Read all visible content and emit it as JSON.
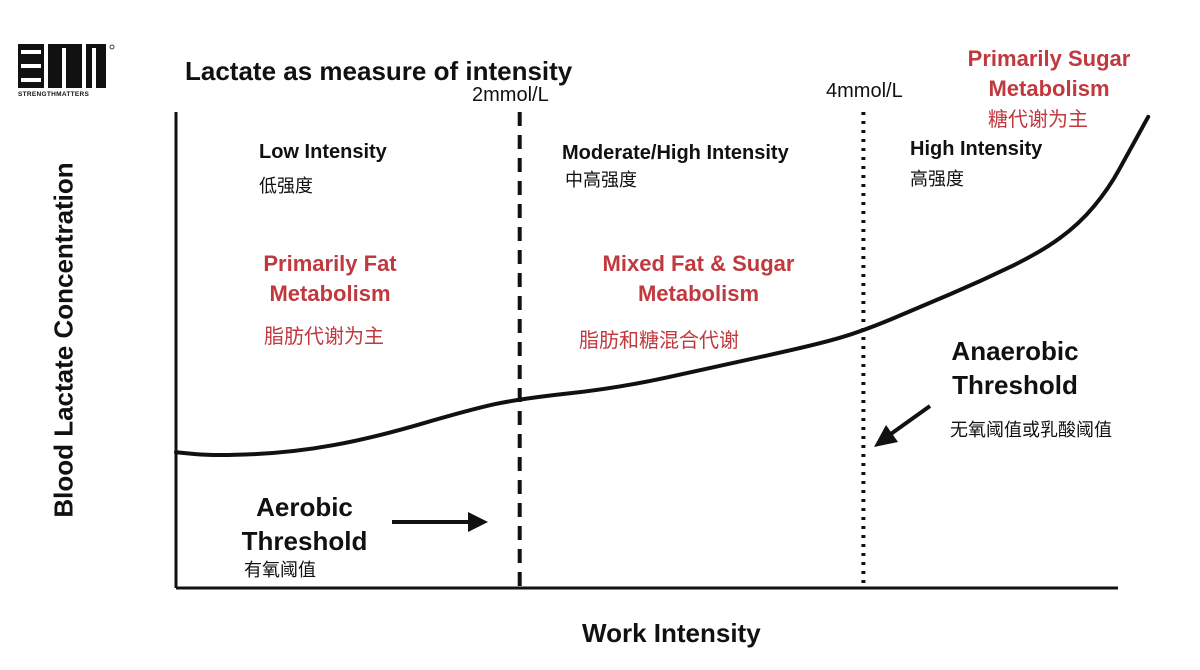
{
  "logo": {
    "text": "STRENGTHMATTERS"
  },
  "chart_data": {
    "type": "line",
    "title": "Lactate as measure of intensity",
    "xlabel": "Work Intensity",
    "ylabel": "Blood Lactate Concentration",
    "grid": false,
    "legend": "none",
    "thresholds": [
      {
        "label": "2mmol/L",
        "position_fraction": 0.35,
        "style": "dashed"
      },
      {
        "label": "4mmol/L",
        "position_fraction": 0.7,
        "style": "dotted"
      }
    ],
    "zones": [
      {
        "intensity": "Low Intensity",
        "intensity_cn": "低强度",
        "metabolism": "Primarily Fat\nMetabolism",
        "metabolism_cn": "脂肪代谢为主"
      },
      {
        "intensity": "Moderate/High Intensity",
        "intensity_cn": "中高强度",
        "metabolism": "Mixed Fat & Sugar\nMetabolism",
        "metabolism_cn": "脂肪和糖混合代谢"
      },
      {
        "intensity": "High Intensity",
        "intensity_cn": "高强度",
        "metabolism": "Primarily Sugar\nMetabolism",
        "metabolism_cn": "糖代谢为主"
      }
    ],
    "annotations": {
      "aerobic": {
        "label": "Aerobic\nThreshold",
        "label_cn": "有氧阈值"
      },
      "anaerobic": {
        "label": "Anaerobic\nThreshold",
        "label_cn": "无氧阈值或乳酸阈值"
      }
    },
    "curve": {
      "x": [
        0.0,
        0.04,
        0.12,
        0.2,
        0.3,
        0.35,
        0.45,
        0.55,
        0.65,
        0.7,
        0.76,
        0.82,
        0.88,
        0.92,
        0.95,
        0.97,
        0.99
      ],
      "y": [
        0.38,
        0.37,
        0.38,
        0.42,
        0.5,
        0.53,
        0.56,
        0.62,
        0.68,
        0.72,
        0.79,
        0.86,
        0.94,
        1.02,
        1.12,
        1.22,
        1.32
      ]
    }
  },
  "colors": {
    "accent": "#c0393f",
    "ink": "#111111"
  }
}
